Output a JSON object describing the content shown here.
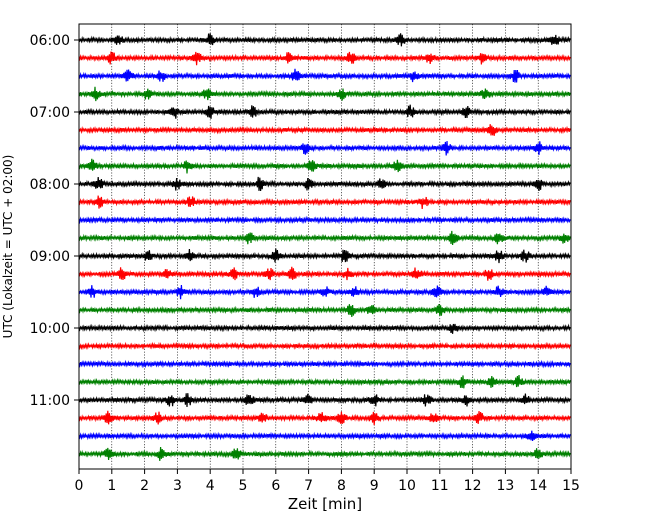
{
  "chart_data": {
    "type": "line",
    "subtype": "helicorder",
    "xlabel": "Zeit  [min]",
    "ylabel": "UTC (Lokalzeit = UTC + 02:00)",
    "xlim": [
      0,
      15
    ],
    "x_ticks": [
      "0",
      "1",
      "2",
      "3",
      "4",
      "5",
      "6",
      "7",
      "8",
      "9",
      "10",
      "11",
      "12",
      "13",
      "14",
      "15"
    ],
    "y_tick_labels": [
      "06:00",
      "07:00",
      "08:00",
      "09:00",
      "10:00",
      "11:00"
    ],
    "grid_x": true,
    "row_minutes": 15,
    "trace_colors": [
      "#000000",
      "#ff0000",
      "#0000ff",
      "#008000"
    ],
    "rows": [
      {
        "start": "06:00",
        "bursts": [
          1.2,
          4.0,
          9.8,
          14.5
        ]
      },
      {
        "start": "06:15",
        "bursts": [
          1.0,
          3.6,
          6.4,
          8.3,
          10.7,
          12.3
        ]
      },
      {
        "start": "06:30",
        "bursts": [
          1.5,
          2.5,
          6.6,
          10.2,
          13.3
        ]
      },
      {
        "start": "06:45",
        "bursts": [
          0.5,
          2.1,
          3.9,
          8.0,
          12.4
        ]
      },
      {
        "start": "07:00",
        "bursts": [
          2.9,
          4.0,
          5.3,
          10.1,
          11.8
        ]
      },
      {
        "start": "07:15",
        "bursts": [
          12.6
        ]
      },
      {
        "start": "07:30",
        "bursts": [
          6.9,
          11.2,
          14.0
        ]
      },
      {
        "start": "07:45",
        "bursts": [
          0.4,
          3.3,
          7.1,
          9.7
        ]
      },
      {
        "start": "08:00",
        "bursts": [
          0.6,
          3.0,
          5.5,
          7.0,
          9.2,
          14.0
        ]
      },
      {
        "start": "08:15",
        "bursts": [
          0.6,
          3.4,
          10.5
        ]
      },
      {
        "start": "08:30",
        "bursts": []
      },
      {
        "start": "08:45",
        "bursts": [
          5.2,
          11.4,
          12.8,
          14.8
        ]
      },
      {
        "start": "09:00",
        "bursts": [
          2.1,
          3.4,
          6.0,
          8.1,
          12.8,
          13.6
        ]
      },
      {
        "start": "09:15",
        "bursts": [
          1.3,
          2.7,
          4.7,
          5.8,
          6.5,
          8.2,
          10.3,
          12.5
        ]
      },
      {
        "start": "09:30",
        "bursts": [
          0.4,
          3.1,
          5.4,
          7.5,
          8.4,
          10.9,
          12.8,
          14.3
        ]
      },
      {
        "start": "09:45",
        "bursts": [
          8.3,
          8.9,
          11.0
        ]
      },
      {
        "start": "10:00",
        "bursts": [
          11.4
        ]
      },
      {
        "start": "10:15",
        "bursts": []
      },
      {
        "start": "10:30",
        "bursts": []
      },
      {
        "start": "10:45",
        "bursts": [
          11.7,
          12.6,
          13.4
        ]
      },
      {
        "start": "11:00",
        "bursts": [
          2.8,
          3.3,
          5.2,
          7.0,
          9.0,
          10.6,
          11.8,
          13.6
        ]
      },
      {
        "start": "11:15",
        "bursts": [
          0.9,
          2.4,
          5.6,
          7.4,
          8.0,
          9.0,
          10.8,
          12.2
        ]
      },
      {
        "start": "11:30",
        "bursts": [
          13.8
        ]
      },
      {
        "start": "11:45",
        "bursts": [
          0.9,
          2.5,
          4.8,
          14.0
        ]
      }
    ]
  }
}
